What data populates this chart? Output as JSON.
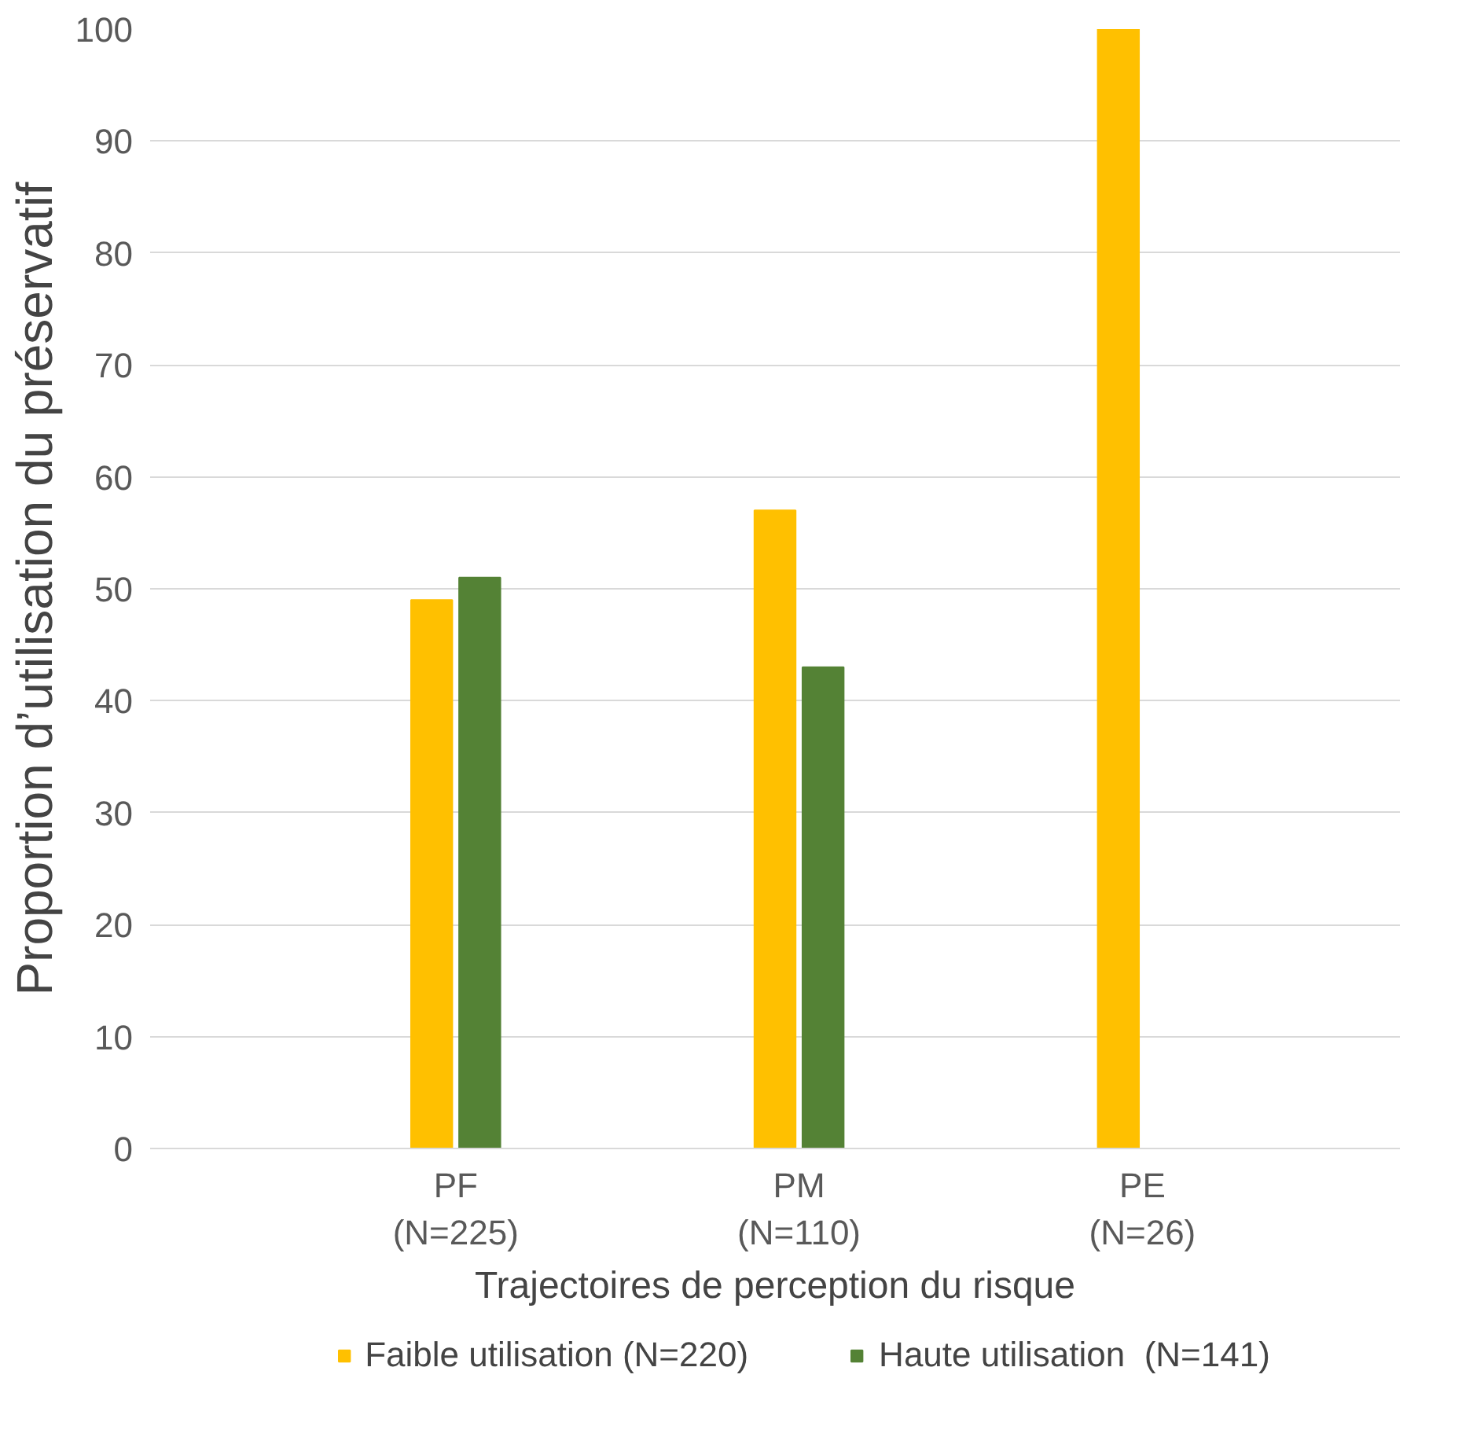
{
  "chart_data": {
    "type": "bar",
    "xlabel": "Trajectoires de perception du risque",
    "ylabel": "Proportion d’utilisation du préservatif",
    "categories": [
      "PF\n(N=225)",
      "PM\n(N=110)",
      "PE\n(N=26)"
    ],
    "series": [
      {
        "name": "Faible utilisation (N=220)",
        "color": "#ffc000",
        "values": [
          49,
          57,
          100
        ]
      },
      {
        "name": "Haute utilisation  (N=141)",
        "color": "#548235",
        "values": [
          51,
          43,
          0
        ]
      }
    ],
    "ylim": [
      0,
      100
    ],
    "yticks": [
      0,
      10,
      20,
      30,
      40,
      50,
      60,
      70,
      80,
      90,
      100
    ],
    "grid": "y",
    "legend": "bottom"
  }
}
